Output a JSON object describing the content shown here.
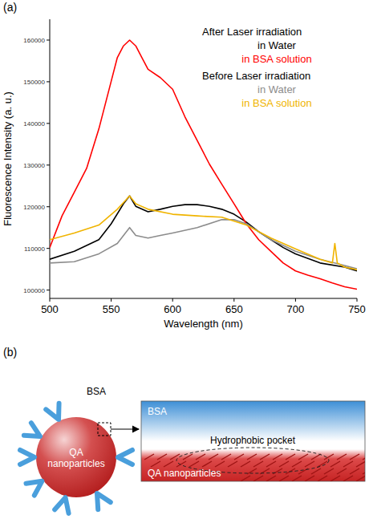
{
  "chart_data": {
    "type": "line",
    "label": "(a)",
    "x_label": "Wavelength (nm)",
    "y_label": "Fluorescence Intensity (a. u.)",
    "xlim": [
      500,
      750
    ],
    "xticks": [
      500,
      550,
      600,
      650,
      700,
      750
    ],
    "ylim": [
      98000,
      165000
    ],
    "yticks": [
      100000,
      110000,
      120000,
      130000,
      140000,
      150000,
      160000
    ],
    "grid": false,
    "legend": "upper right",
    "series": [
      {
        "name": "in Water",
        "group": "After Laser irradiation",
        "color": "#000000",
        "x": [
          500,
          520,
          540,
          550,
          560,
          565,
          570,
          580,
          590,
          600,
          610,
          620,
          630,
          640,
          650,
          660,
          670,
          680,
          690,
          700,
          720,
          740,
          750
        ],
        "values": [
          107400,
          109300,
          112100,
          115900,
          120700,
          122600,
          120100,
          118800,
          119400,
          120100,
          120500,
          120500,
          120100,
          119400,
          118200,
          116300,
          114000,
          112100,
          110200,
          108700,
          106500,
          105500,
          104600
        ]
      },
      {
        "name": "in BSA solution",
        "group": "After Laser irradiation",
        "color": "#ff0000",
        "x": [
          500,
          510,
          520,
          530,
          540,
          550,
          555,
          560,
          565,
          570,
          575,
          580,
          590,
          600,
          610,
          620,
          630,
          640,
          650,
          660,
          670,
          680,
          690,
          700,
          710,
          720,
          730,
          740,
          750
        ],
        "values": [
          110200,
          117800,
          123500,
          129200,
          138700,
          150100,
          155800,
          158600,
          160000,
          158600,
          155800,
          153000,
          151000,
          148200,
          141600,
          135900,
          130200,
          125400,
          120700,
          115900,
          112100,
          109300,
          106500,
          104600,
          103600,
          102700,
          101700,
          100800,
          100200
        ]
      },
      {
        "name": "in Water",
        "group": "Before Laser irradiation",
        "color": "#8c8c8c",
        "x": [
          500,
          520,
          540,
          555,
          565,
          570,
          580,
          590,
          600,
          620,
          640,
          650,
          660,
          670,
          680,
          700,
          720,
          740,
          750
        ],
        "values": [
          106500,
          106800,
          108700,
          111200,
          115000,
          113100,
          112500,
          113100,
          113700,
          115000,
          116900,
          116900,
          115900,
          114000,
          112100,
          109300,
          107400,
          105900,
          105100
        ]
      },
      {
        "name": "in BSA solution",
        "group": "Before Laser irradiation",
        "color": "#f0b400",
        "x": [
          500,
          520,
          540,
          555,
          565,
          570,
          580,
          600,
          620,
          640,
          660,
          680,
          700,
          720,
          730,
          732,
          734,
          740,
          750
        ],
        "values": [
          112100,
          113700,
          115600,
          119400,
          122600,
          120700,
          119400,
          118200,
          117800,
          117500,
          115600,
          112500,
          109900,
          107400,
          106500,
          111200,
          106500,
          105500,
          104900
        ]
      }
    ]
  },
  "diagram": {
    "label": "(b)",
    "particle_label": "QA nanoparticles",
    "bsa_label": "BSA",
    "inset": {
      "top_label": "BSA",
      "pocket_label": "Hydrophobic pocket",
      "bottom_label": "QA nanoparticles"
    }
  }
}
